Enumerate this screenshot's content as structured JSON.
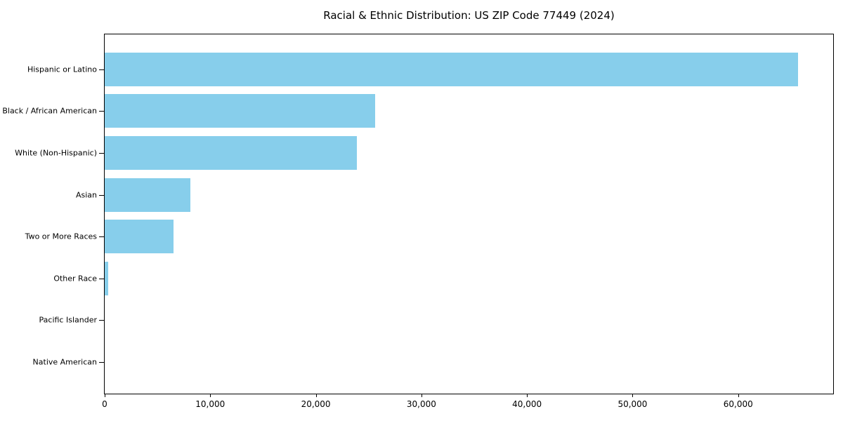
{
  "figure": {
    "background": "#FFFFFF"
  },
  "chart_data": {
    "type": "bar",
    "orientation": "horizontal",
    "title": "Racial & Ethnic Distribution: US ZIP Code 77449 (2024)",
    "categories": [
      "Hispanic or Latino",
      "Black / African American",
      "White (Non-Hispanic)",
      "Asian",
      "Two or More Races",
      "Other Race",
      "Pacific Islander",
      "Native American"
    ],
    "values": [
      65700,
      25600,
      23900,
      8100,
      6500,
      330,
      0,
      0
    ],
    "xlabel": "",
    "ylabel": "",
    "xlim": [
      0,
      69000
    ],
    "x_ticks": [
      0,
      10000,
      20000,
      30000,
      40000,
      50000,
      60000
    ],
    "x_tick_labels": [
      "0",
      "10,000",
      "20,000",
      "30,000",
      "40,000",
      "50,000",
      "60,000"
    ],
    "bar_color": "#87CEEB",
    "axis_color": "#000000",
    "text_color": "#000000",
    "grid": false,
    "legend_position": "none",
    "category_order": "largest_at_top"
  }
}
